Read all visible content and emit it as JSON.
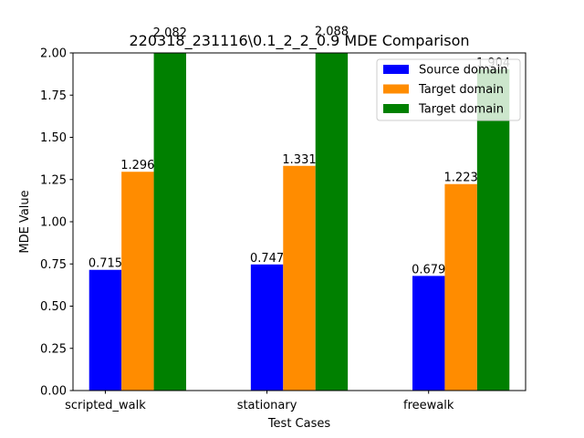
{
  "chart_data": {
    "type": "bar",
    "title": "220318_231116\\0.1_2_2_0.9 MDE Comparison",
    "xlabel": "Test Cases",
    "ylabel": "MDE Value",
    "ylim": [
      0,
      2.0
    ],
    "yticks": [
      "0.00",
      "0.25",
      "0.50",
      "0.75",
      "1.00",
      "1.25",
      "1.50",
      "1.75",
      "2.00"
    ],
    "categories": [
      "scripted_walk",
      "stationary",
      "freewalk"
    ],
    "series": [
      {
        "name": "Source domain",
        "color": "#0000ff",
        "values": [
          0.715,
          0.747,
          0.679
        ],
        "labels": [
          "0.715",
          "0.747",
          "0.679"
        ]
      },
      {
        "name": "Target domain",
        "color": "#ff8c00",
        "values": [
          1.296,
          1.331,
          1.223
        ],
        "labels": [
          "1.296",
          "1.331",
          "1.223"
        ]
      },
      {
        "name": "Target domain",
        "color": "#008000",
        "values": [
          2.082,
          2.088,
          1.904
        ],
        "labels": [
          "2.082",
          "2.088",
          "1.904"
        ]
      }
    ],
    "legend_position": "top-right",
    "grid": false
  }
}
